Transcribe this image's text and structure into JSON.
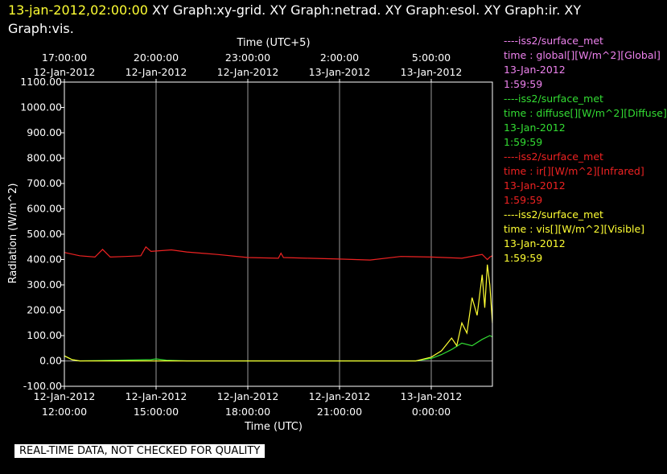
{
  "title": {
    "timestamp": "13-jan-2012,02:00:00",
    "line1_rest": "  XY Graph:xy-grid.  XY Graph:netrad.  XY Graph:esol.  XY Graph:ir.  XY",
    "line2": "Graph:vis."
  },
  "footer": "REAL-TIME DATA, NOT CHECKED FOR QUALITY",
  "colors": {
    "background": "#000000",
    "axis": "#ffffff",
    "grid": "#9a9a9a",
    "global": "#ee82ee",
    "diffuse": "#33dd33",
    "infrared": "#ee2222",
    "visible": "#ffff33"
  },
  "legend": [
    {
      "source": "----iss2/surface_met",
      "field": "time : global[][W/m^2][Global]",
      "date": "13-Jan-2012",
      "time": "1:59:59",
      "color_key": "global"
    },
    {
      "source": "----iss2/surface_met",
      "field": "time : diffuse[][W/m^2][Diffuse]",
      "date": "13-Jan-2012",
      "time": "1:59:59",
      "color_key": "diffuse"
    },
    {
      "source": "----iss2/surface_met",
      "field": "time : ir[][W/m^2][Infrared]",
      "date": "13-Jan-2012",
      "time": "1:59:59",
      "color_key": "infrared"
    },
    {
      "source": "----iss2/surface_met",
      "field": "time : vis[][W/m^2][Visible]",
      "date": "13-Jan-2012",
      "time": "1:59:59",
      "color_key": "visible"
    }
  ],
  "chart_data": {
    "type": "line",
    "ylabel": "Radiation (W/m^2)",
    "xlabel_bottom": "Time (UTC)",
    "xlabel_top": "Time (UTC+5)",
    "ylim": [
      -100,
      1100
    ],
    "y_ticks": [
      -100,
      0,
      100,
      200,
      300,
      400,
      500,
      600,
      700,
      800,
      900,
      1000,
      1100
    ],
    "y_tick_labels": [
      "-100.00",
      "0.00",
      "100.00",
      "200.00",
      "300.00",
      "400.00",
      "500.00",
      "600.00",
      "700.00",
      "800.00",
      "900.00",
      "1000.00",
      "1100.00"
    ],
    "xlim": [
      "2012-01-12 12:00",
      "2012-01-13 02:00"
    ],
    "x_ticks_bottom": [
      {
        "time": "2012-01-12 12:00",
        "line1": "12-Jan-2012",
        "line2": "12:00:00"
      },
      {
        "time": "2012-01-12 15:00",
        "line1": "12-Jan-2012",
        "line2": "15:00:00"
      },
      {
        "time": "2012-01-12 18:00",
        "line1": "12-Jan-2012",
        "line2": "18:00:00"
      },
      {
        "time": "2012-01-12 21:00",
        "line1": "12-Jan-2012",
        "line2": "21:00:00"
      },
      {
        "time": "2012-01-13 00:00",
        "line1": "13-Jan-2012",
        "line2": "0:00:00"
      }
    ],
    "x_ticks_top": [
      {
        "time": "2012-01-12 12:00",
        "line1": "17:00:00",
        "line2": "12-Jan-2012"
      },
      {
        "time": "2012-01-12 15:00",
        "line1": "20:00:00",
        "line2": "12-Jan-2012"
      },
      {
        "time": "2012-01-12 18:00",
        "line1": "23:00:00",
        "line2": "12-Jan-2012"
      },
      {
        "time": "2012-01-12 21:00",
        "line1": "2:00:00",
        "line2": "13-Jan-2012"
      },
      {
        "time": "2012-01-13 00:00",
        "line1": "5:00:00",
        "line2": "13-Jan-2012"
      }
    ],
    "vertical_grid_at": [
      "2012-01-12 15:00",
      "2012-01-12 18:00",
      "2012-01-12 21:00",
      "2012-01-13 00:00"
    ],
    "series": [
      {
        "name": "ir[][W/m^2][Infrared]",
        "color_key": "infrared",
        "x": [
          "2012-01-12 12:00",
          "2012-01-12 12:30",
          "2012-01-12 13:00",
          "2012-01-12 13:15",
          "2012-01-12 13:30",
          "2012-01-12 14:00",
          "2012-01-12 14:30",
          "2012-01-12 14:40",
          "2012-01-12 14:50",
          "2012-01-12 15:30",
          "2012-01-12 16:00",
          "2012-01-12 17:00",
          "2012-01-12 18:00",
          "2012-01-12 19:00",
          "2012-01-12 19:05",
          "2012-01-12 19:10",
          "2012-01-12 20:00",
          "2012-01-12 21:00",
          "2012-01-12 22:00",
          "2012-01-12 23:00",
          "2012-01-13 00:00",
          "2012-01-13 01:00",
          "2012-01-13 01:40",
          "2012-01-13 01:50",
          "2012-01-13 01:55",
          "2012-01-13 02:00"
        ],
        "y": [
          428,
          415,
          410,
          440,
          410,
          412,
          415,
          450,
          432,
          438,
          430,
          420,
          408,
          405,
          425,
          408,
          405,
          402,
          398,
          412,
          410,
          405,
          420,
          400,
          410,
          415
        ]
      },
      {
        "name": "diffuse[][W/m^2][Diffuse]",
        "color_key": "diffuse",
        "x": [
          "2012-01-12 12:00",
          "2012-01-12 12:15",
          "2012-01-12 12:30",
          "2012-01-12 14:50",
          "2012-01-12 15:00",
          "2012-01-12 15:20",
          "2012-01-12 16:00",
          "2012-01-12 19:00",
          "2012-01-12 21:00",
          "2012-01-12 23:00",
          "2012-01-12 23:30",
          "2012-01-13 00:00",
          "2012-01-13 00:20",
          "2012-01-13 00:40",
          "2012-01-13 01:00",
          "2012-01-13 01:20",
          "2012-01-13 01:40",
          "2012-01-13 01:55",
          "2012-01-13 02:00"
        ],
        "y": [
          20,
          5,
          0,
          5,
          8,
          3,
          0,
          0,
          0,
          0,
          0,
          10,
          25,
          45,
          70,
          60,
          85,
          100,
          95
        ]
      },
      {
        "name": "vis[][W/m^2][Visible]",
        "color_key": "visible",
        "x": [
          "2012-01-12 12:00",
          "2012-01-12 12:15",
          "2012-01-12 12:30",
          "2012-01-12 16:00",
          "2012-01-12 19:00",
          "2012-01-12 21:00",
          "2012-01-12 23:00",
          "2012-01-12 23:30",
          "2012-01-13 00:00",
          "2012-01-13 00:20",
          "2012-01-13 00:40",
          "2012-01-13 00:50",
          "2012-01-13 01:00",
          "2012-01-13 01:10",
          "2012-01-13 01:20",
          "2012-01-13 01:30",
          "2012-01-13 01:40",
          "2012-01-13 01:45",
          "2012-01-13 01:50",
          "2012-01-13 01:55",
          "2012-01-13 02:00"
        ],
        "y": [
          20,
          5,
          0,
          0,
          0,
          0,
          0,
          0,
          15,
          40,
          90,
          60,
          150,
          110,
          250,
          180,
          340,
          210,
          380,
          300,
          150
        ]
      }
    ]
  }
}
